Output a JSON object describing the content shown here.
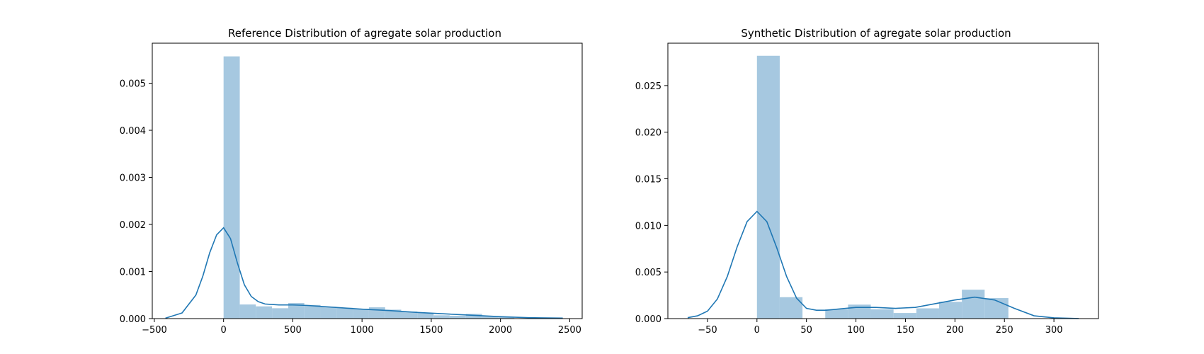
{
  "chart_data": [
    {
      "type": "histogram+kde",
      "title": "Reference Distribution of agregate solar production",
      "xlabel": "",
      "ylabel": "",
      "xlim": [
        -515,
        2590
      ],
      "ylim": [
        0,
        0.00585
      ],
      "xticks": [
        -500,
        0,
        500,
        1000,
        1500,
        2000,
        2500
      ],
      "xtick_labels": [
        "−500",
        "0",
        "500",
        "1000",
        "1500",
        "2000",
        "2500"
      ],
      "yticks": [
        0,
        0.001,
        0.002,
        0.003,
        0.004,
        0.005
      ],
      "ytick_labels": [
        "0.000",
        "0.001",
        "0.002",
        "0.003",
        "0.004",
        "0.005"
      ],
      "grid": false,
      "colors": {
        "bars": "#a6c8e0",
        "kde": "#1f77b4"
      },
      "bins": [
        {
          "x0": 0,
          "x1": 117,
          "density": 0.00557
        },
        {
          "x0": 117,
          "x1": 233,
          "density": 0.0003
        },
        {
          "x0": 233,
          "x1": 350,
          "density": 0.00026
        },
        {
          "x0": 350,
          "x1": 467,
          "density": 0.00022
        },
        {
          "x0": 467,
          "x1": 583,
          "density": 0.00033
        },
        {
          "x0": 583,
          "x1": 700,
          "density": 0.00029
        },
        {
          "x0": 700,
          "x1": 817,
          "density": 0.00025
        },
        {
          "x0": 817,
          "x1": 933,
          "density": 0.00023
        },
        {
          "x0": 933,
          "x1": 1050,
          "density": 0.00021
        },
        {
          "x0": 1050,
          "x1": 1167,
          "density": 0.00024
        },
        {
          "x0": 1167,
          "x1": 1283,
          "density": 0.00019
        },
        {
          "x0": 1283,
          "x1": 1400,
          "density": 0.00015
        },
        {
          "x0": 1400,
          "x1": 1517,
          "density": 0.00012
        },
        {
          "x0": 1517,
          "x1": 1633,
          "density": 7e-05
        },
        {
          "x0": 1633,
          "x1": 1750,
          "density": 6e-05
        },
        {
          "x0": 1750,
          "x1": 1867,
          "density": 0.0001
        },
        {
          "x0": 1867,
          "x1": 1983,
          "density": 5e-05
        },
        {
          "x0": 1983,
          "x1": 2100,
          "density": 3e-05
        }
      ],
      "kde": {
        "x": [
          -420,
          -300,
          -200,
          -150,
          -100,
          -50,
          0,
          50,
          100,
          150,
          200,
          250,
          300,
          400,
          500,
          600,
          800,
          1000,
          1200,
          1400,
          1600,
          1800,
          2000,
          2200,
          2450
        ],
        "y": [
          1e-05,
          0.00012,
          0.0005,
          0.0009,
          0.0014,
          0.00178,
          0.00193,
          0.0017,
          0.00118,
          0.00072,
          0.00047,
          0.00036,
          0.00031,
          0.00029,
          0.00029,
          0.00028,
          0.00024,
          0.0002,
          0.00017,
          0.00013,
          0.0001,
          7e-05,
          4e-05,
          2e-05,
          1e-05
        ]
      }
    },
    {
      "type": "histogram+kde",
      "title": "Synthetic Distribution of agregate solar production",
      "xlabel": "",
      "ylabel": "",
      "xlim": [
        -90,
        345
      ],
      "ylim": [
        0,
        0.02955
      ],
      "xticks": [
        -50,
        0,
        50,
        100,
        150,
        200,
        250,
        300
      ],
      "xtick_labels": [
        "−50",
        "0",
        "50",
        "100",
        "150",
        "200",
        "250",
        "300"
      ],
      "yticks": [
        0,
        0.005,
        0.01,
        0.015,
        0.02,
        0.025
      ],
      "ytick_labels": [
        "0.000",
        "0.005",
        "0.010",
        "0.015",
        "0.020",
        "0.025"
      ],
      "grid": false,
      "colors": {
        "bars": "#a6c8e0",
        "kde": "#1f77b4"
      },
      "bins": [
        {
          "x0": 0,
          "x1": 23,
          "density": 0.0282
        },
        {
          "x0": 23,
          "x1": 46,
          "density": 0.0023
        },
        {
          "x0": 46,
          "x1": 69,
          "density": 0.0
        },
        {
          "x0": 69,
          "x1": 92,
          "density": 0.001
        },
        {
          "x0": 92,
          "x1": 115,
          "density": 0.0015
        },
        {
          "x0": 115,
          "x1": 138,
          "density": 0.001
        },
        {
          "x0": 138,
          "x1": 161,
          "density": 0.0006
        },
        {
          "x0": 161,
          "x1": 184,
          "density": 0.0011
        },
        {
          "x0": 184,
          "x1": 207,
          "density": 0.0018
        },
        {
          "x0": 207,
          "x1": 230,
          "density": 0.0031
        },
        {
          "x0": 230,
          "x1": 254,
          "density": 0.0022
        }
      ],
      "kde": {
        "x": [
          -70,
          -60,
          -50,
          -40,
          -30,
          -20,
          -10,
          0,
          10,
          20,
          30,
          40,
          50,
          60,
          70,
          80,
          100,
          120,
          140,
          160,
          180,
          200,
          220,
          240,
          260,
          280,
          300,
          325
        ],
        "y": [
          0.0001,
          0.0003,
          0.0008,
          0.0021,
          0.0045,
          0.0077,
          0.0104,
          0.0115,
          0.0104,
          0.0076,
          0.0045,
          0.0022,
          0.0011,
          0.0009,
          0.0009,
          0.001,
          0.0012,
          0.0012,
          0.0011,
          0.0012,
          0.0016,
          0.002,
          0.0023,
          0.002,
          0.0011,
          0.0003,
          8e-05,
          1e-05
        ]
      }
    }
  ]
}
